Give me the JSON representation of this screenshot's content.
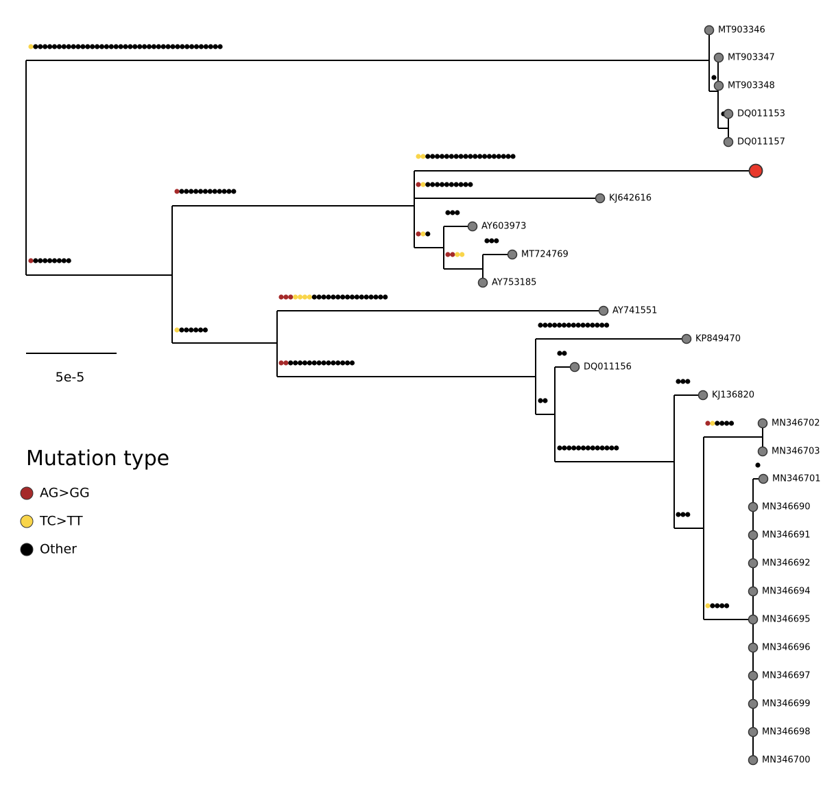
{
  "tree": {
    "leaves": [
      {
        "id": "t1",
        "label": "MT903346",
        "highlight": false
      },
      {
        "id": "t2",
        "label": "MT903347",
        "highlight": false
      },
      {
        "id": "t3",
        "label": "MT903348",
        "highlight": false
      },
      {
        "id": "t4",
        "label": "DQ011153",
        "highlight": false
      },
      {
        "id": "t5",
        "label": "DQ011157",
        "highlight": false
      },
      {
        "id": "t6",
        "label": "",
        "highlight": true
      },
      {
        "id": "t7",
        "label": "KJ642616",
        "highlight": false
      },
      {
        "id": "t8",
        "label": "AY603973",
        "highlight": false
      },
      {
        "id": "t9",
        "label": "MT724769",
        "highlight": false
      },
      {
        "id": "t10",
        "label": "AY753185",
        "highlight": false
      },
      {
        "id": "t11",
        "label": "AY741551",
        "highlight": false
      },
      {
        "id": "t12",
        "label": "KP849470",
        "highlight": false
      },
      {
        "id": "t13",
        "label": "DQ011156",
        "highlight": false
      },
      {
        "id": "t14",
        "label": "KJ136820",
        "highlight": false
      },
      {
        "id": "t15",
        "label": "MN346702",
        "highlight": false
      },
      {
        "id": "t16",
        "label": "MN346703",
        "highlight": false
      },
      {
        "id": "t17",
        "label": "MN346701",
        "highlight": false
      },
      {
        "id": "t18",
        "label": "MN346690",
        "highlight": false
      },
      {
        "id": "t19",
        "label": "MN346691",
        "highlight": false
      },
      {
        "id": "t20",
        "label": "MN346692",
        "highlight": false
      },
      {
        "id": "t21",
        "label": "MN346694",
        "highlight": false
      },
      {
        "id": "t22",
        "label": "MN346695",
        "highlight": false
      },
      {
        "id": "t23",
        "label": "MN346696",
        "highlight": false
      },
      {
        "id": "t24",
        "label": "MN346697",
        "highlight": false
      },
      {
        "id": "t25",
        "label": "MN346699",
        "highlight": false
      },
      {
        "id": "t26",
        "label": "MN346698",
        "highlight": false
      },
      {
        "id": "t27",
        "label": "MN346700",
        "highlight": false
      }
    ],
    "branch_mutations": [
      {
        "branch": "to-clade-MT903346",
        "types": [
          "TC>TT",
          "Other x40"
        ],
        "counts": {
          "AG>GG": 0,
          "TC>TT": 1,
          "Other": 40
        }
      },
      {
        "branch": "to-ingroup",
        "counts": {
          "AG>GG": 1,
          "TC>TT": 0,
          "Other": 8
        }
      },
      {
        "branch": "to-clade-KJ642616",
        "counts": {
          "AG>GG": 1,
          "TC>TT": 0,
          "Other": 12
        }
      },
      {
        "branch": "to-highlighted-leaf",
        "counts": {
          "AG>GG": 0,
          "TC>TT": 2,
          "Other": 19
        }
      },
      {
        "branch": "to-KJ642616",
        "counts": {
          "AG>GG": 1,
          "TC>TT": 1,
          "Other": 10
        }
      },
      {
        "branch": "to-clade-AY603973",
        "counts": {
          "AG>GG": 1,
          "TC>TT": 1,
          "Other": 1
        }
      },
      {
        "branch": "to-AY603973",
        "counts": {
          "AG>GG": 0,
          "TC>TT": 0,
          "Other": 3
        }
      },
      {
        "branch": "to-clade-MT724769",
        "counts": {
          "AG>GG": 2,
          "TC>TT": 2,
          "Other": 0
        }
      },
      {
        "branch": "to-MT724769",
        "counts": {
          "AG>GG": 0,
          "TC>TT": 0,
          "Other": 3
        }
      },
      {
        "branch": "to-clade-AY741551",
        "counts": {
          "AG>GG": 0,
          "TC>TT": 1,
          "Other": 6
        }
      },
      {
        "branch": "to-AY741551",
        "counts": {
          "AG>GG": 3,
          "TC>TT": 4,
          "Other": 16
        }
      },
      {
        "branch": "to-clade-KP849470",
        "counts": {
          "AG>GG": 2,
          "TC>TT": 0,
          "Other": 14
        }
      },
      {
        "branch": "to-KP849470",
        "counts": {
          "AG>GG": 0,
          "TC>TT": 0,
          "Other": 15
        }
      },
      {
        "branch": "to-clade-DQ011156",
        "counts": {
          "AG>GG": 0,
          "TC>TT": 0,
          "Other": 2
        }
      },
      {
        "branch": "to-DQ011156",
        "counts": {
          "AG>GG": 0,
          "TC>TT": 0,
          "Other": 2
        }
      },
      {
        "branch": "to-clade-KJ136820",
        "counts": {
          "AG>GG": 0,
          "TC>TT": 0,
          "Other": 13
        }
      },
      {
        "branch": "to-KJ136820",
        "counts": {
          "AG>GG": 0,
          "TC>TT": 0,
          "Other": 3
        }
      },
      {
        "branch": "to-clade-MN",
        "counts": {
          "AG>GG": 0,
          "TC>TT": 0,
          "Other": 3
        }
      },
      {
        "branch": "to-clade-MN346702",
        "counts": {
          "AG>GG": 1,
          "TC>TT": 1,
          "Other": 4
        }
      },
      {
        "branch": "to-clade-MN346690",
        "counts": {
          "AG>GG": 0,
          "TC>TT": 1,
          "Other": 4
        }
      },
      {
        "branch": "to-clade-MN346701",
        "counts": {
          "AG>GG": 0,
          "TC>TT": 0,
          "Other": 1
        }
      },
      {
        "branch": "to-clade-MT903348",
        "counts": {
          "AG>GG": 0,
          "TC>TT": 0,
          "Other": 1
        }
      },
      {
        "branch": "to-clade-DQ011153",
        "counts": {
          "AG>GG": 0,
          "TC>TT": 0,
          "Other": 1
        }
      }
    ]
  },
  "scale_bar": {
    "label": "5e-5"
  },
  "legend": {
    "title": "Mutation type",
    "items": [
      {
        "label": "AG>GG",
        "color": "#a52a2a"
      },
      {
        "label": "TC>TT",
        "color": "#f9d54a"
      },
      {
        "label": "Other",
        "color": "#000000"
      }
    ]
  },
  "colors": {
    "leaf_node": "#808080",
    "highlight_node": "#e8382b",
    "branch": "#000000"
  }
}
